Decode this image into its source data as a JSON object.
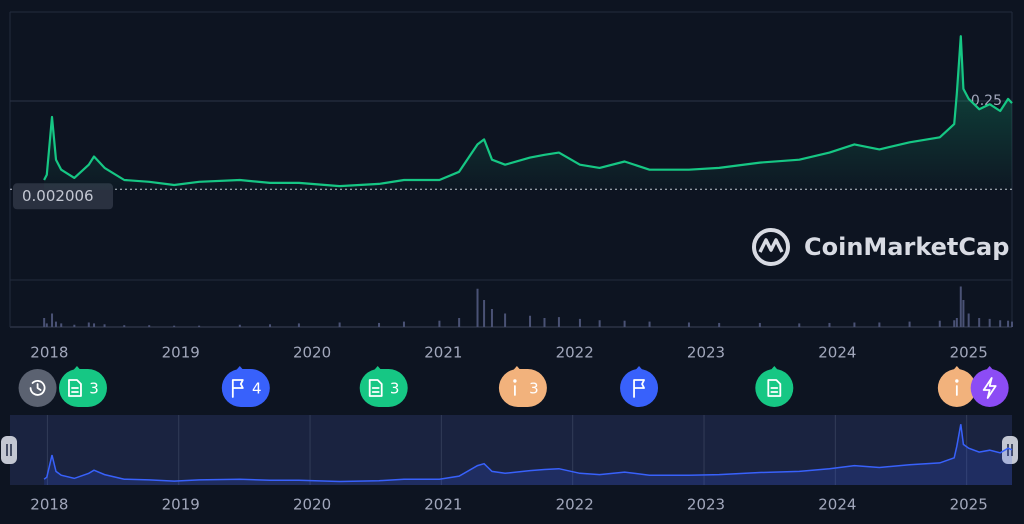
{
  "chart_data": {
    "type": "line",
    "watermark": "CoinMarketCap",
    "color": "#16c784",
    "navigator_color": "#3861fb",
    "grid": true,
    "xlim": [
      2017.7,
      2025.33
    ],
    "xticks": [
      2018,
      2019,
      2020,
      2021,
      2022,
      2023,
      2024,
      2025
    ],
    "ylim": [
      0,
      0.5
    ],
    "yticks": [
      0.25
    ],
    "price_marker": 0.002006,
    "x": [
      2017.96,
      2017.98,
      2018.02,
      2018.05,
      2018.09,
      2018.19,
      2018.3,
      2018.34,
      2018.42,
      2018.57,
      2018.76,
      2018.95,
      2019.14,
      2019.45,
      2019.68,
      2019.9,
      2020.21,
      2020.51,
      2020.7,
      2020.97,
      2021.12,
      2021.26,
      2021.31,
      2021.37,
      2021.47,
      2021.66,
      2021.77,
      2021.88,
      2022.04,
      2022.19,
      2022.38,
      2022.57,
      2022.87,
      2023.1,
      2023.41,
      2023.71,
      2023.94,
      2024.13,
      2024.32,
      2024.55,
      2024.78,
      2024.89,
      2024.91,
      2024.94,
      2024.96,
      2025.0,
      2025.08,
      2025.16,
      2025.24,
      2025.3,
      2025.33
    ],
    "values": [
      0.028,
      0.043,
      0.205,
      0.085,
      0.057,
      0.034,
      0.071,
      0.094,
      0.062,
      0.028,
      0.023,
      0.014,
      0.023,
      0.028,
      0.02,
      0.02,
      0.011,
      0.017,
      0.028,
      0.028,
      0.051,
      0.128,
      0.142,
      0.085,
      0.071,
      0.091,
      0.099,
      0.105,
      0.071,
      0.062,
      0.08,
      0.057,
      0.057,
      0.062,
      0.077,
      0.085,
      0.105,
      0.128,
      0.114,
      0.134,
      0.148,
      0.185,
      0.27,
      0.432,
      0.284,
      0.256,
      0.227,
      0.241,
      0.222,
      0.256,
      0.244
    ],
    "volume_ylim": [
      0,
      100
    ],
    "volume": [
      20,
      8,
      30,
      12,
      8,
      5,
      10,
      8,
      6,
      4,
      4,
      3,
      3,
      5,
      6,
      8,
      10,
      9,
      12,
      14,
      20,
      85,
      60,
      40,
      30,
      25,
      20,
      22,
      18,
      15,
      14,
      12,
      10,
      9,
      9,
      8,
      9,
      10,
      10,
      12,
      14,
      15,
      20,
      90,
      60,
      30,
      20,
      18,
      15,
      14,
      12
    ],
    "events": [
      {
        "x": 2017.91,
        "kind": "history",
        "color": "#5b6271"
      },
      {
        "x": 2018.21,
        "kind": "doc",
        "color": "#16c784",
        "count": 3
      },
      {
        "x": 2019.45,
        "kind": "flag",
        "color": "#3861fb",
        "count": 4
      },
      {
        "x": 2020.5,
        "kind": "doc",
        "color": "#16c784",
        "count": 3
      },
      {
        "x": 2021.56,
        "kind": "info",
        "color": "#f2b27c",
        "count": 3
      },
      {
        "x": 2022.49,
        "kind": "flag",
        "color": "#3861fb"
      },
      {
        "x": 2023.52,
        "kind": "doc",
        "color": "#16c784"
      },
      {
        "x": 2024.91,
        "kind": "info",
        "color": "#f2b27c"
      },
      {
        "x": 2025.16,
        "kind": "bolt",
        "color": "#8c4cf5"
      }
    ]
  }
}
